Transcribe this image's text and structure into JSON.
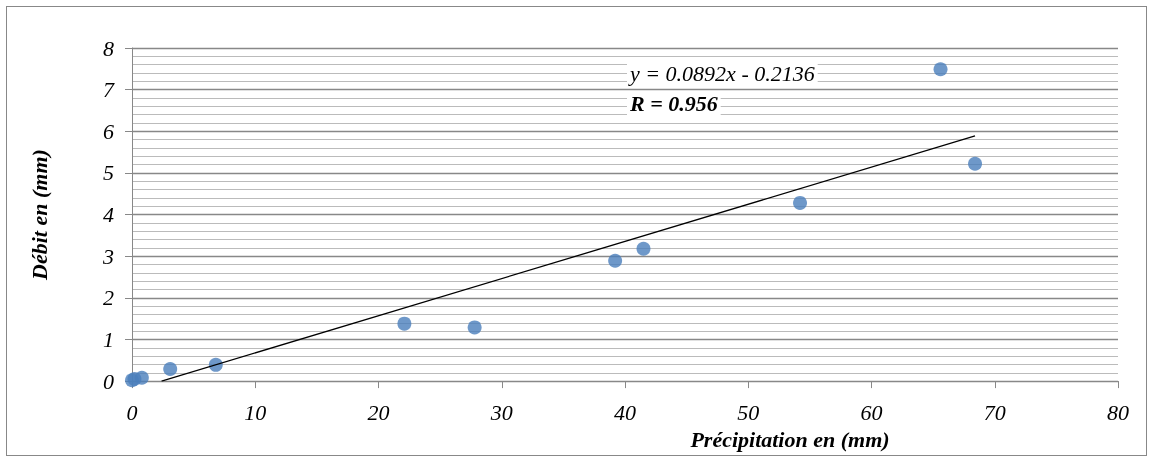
{
  "chart_data": {
    "type": "scatter",
    "xlabel": "Précipitation en (mm)",
    "ylabel": "Débit en (mm)",
    "annotations": [
      "y = 0.0892x - 0.2136",
      "R = 0.956"
    ],
    "series": [
      {
        "type": "scatter",
        "color": "#4a7ebb",
        "marker": "circle",
        "x": [
          0,
          0.2,
          0.8,
          3.1,
          6.8,
          22.1,
          27.8,
          39.2,
          41.5,
          54.2,
          65.6,
          68.4
        ],
        "values": [
          0.02,
          0.05,
          0.08,
          0.29,
          0.39,
          1.38,
          1.29,
          2.89,
          3.18,
          4.28,
          7.49,
          5.22
        ]
      },
      {
        "type": "line",
        "color": "#000000",
        "marker": "none",
        "x": [
          2.4,
          68.4
        ],
        "values": [
          0,
          5.89
        ]
      }
    ],
    "xlim": [
      0,
      80
    ],
    "xticks": [
      0,
      10,
      20,
      30,
      40,
      50,
      60,
      70,
      80
    ],
    "ylim": [
      0,
      8
    ],
    "yticks": [
      0,
      1,
      2,
      3,
      4,
      5,
      6,
      7,
      8
    ],
    "grid": "y"
  }
}
